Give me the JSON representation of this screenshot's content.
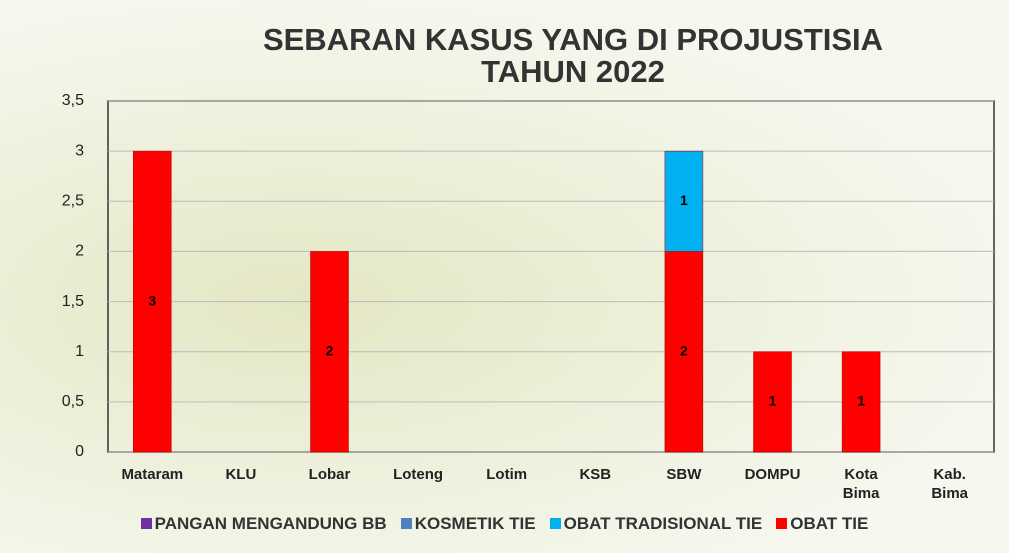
{
  "chart_data": {
    "type": "stacked_bar",
    "title": [
      "SEBARAN KASUS YANG DI PROJUSTISIA",
      "TAHUN 2022"
    ],
    "categories": [
      "Mataram",
      "KLU",
      "Lobar",
      "Loteng",
      "Lotim",
      "KSB",
      "SBW",
      "DOMPU",
      "Kota Bima",
      "Kab. Bima"
    ],
    "series": [
      {
        "name": "PANGAN MENGANDUNG BB",
        "color": "#7030a0",
        "values": [
          null,
          null,
          null,
          null,
          null,
          null,
          null,
          null,
          null,
          null
        ]
      },
      {
        "name": "KOSMETIK TIE",
        "color": "#4f81bd",
        "values": [
          null,
          null,
          null,
          null,
          null,
          null,
          null,
          null,
          null,
          null
        ]
      },
      {
        "name": "OBAT TRADISIONAL TIE",
        "color": "#00b0f0",
        "values": [
          null,
          null,
          null,
          null,
          null,
          null,
          1,
          null,
          null,
          null
        ]
      },
      {
        "name": "OBAT TIE",
        "color": "#ff0000",
        "values": [
          3,
          null,
          2,
          null,
          null,
          null,
          2,
          1,
          1,
          null
        ]
      }
    ],
    "ylim": [
      0,
      3.5
    ],
    "yticks": [
      0,
      {
        "value": 0.5,
        "label": "0,5"
      },
      1,
      {
        "value": 1.5,
        "label": "1,5"
      },
      2,
      {
        "value": 2.5,
        "label": "2,5"
      },
      3,
      {
        "value": 3.5,
        "label": "3,5"
      }
    ],
    "grid": true,
    "legend": "bottom"
  }
}
